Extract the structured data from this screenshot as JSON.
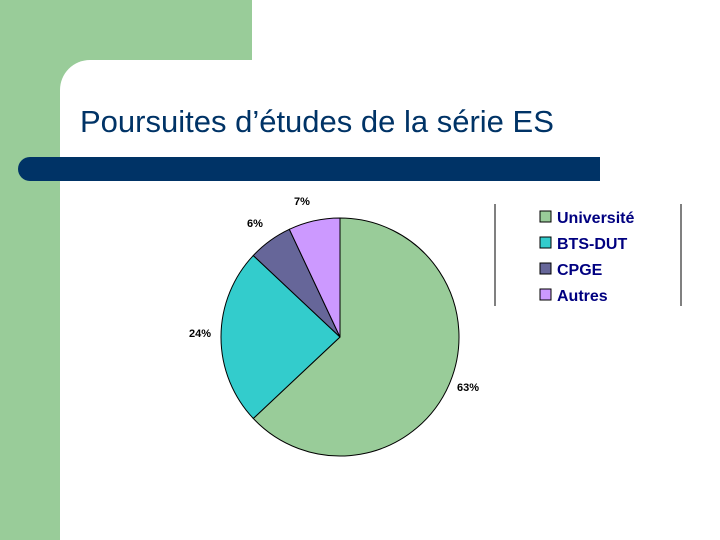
{
  "slide": {
    "title": "Poursuites d’études de la série ES",
    "colors": {
      "side_bar": "#99cc99",
      "title_bar": "#003366",
      "title_text": "#003366",
      "background": "#ffffff"
    }
  },
  "chart_data": {
    "type": "pie",
    "title": "",
    "categories": [
      "Université",
      "BTS-DUT",
      "CPGE",
      "Autres"
    ],
    "values": [
      63,
      24,
      6,
      7
    ],
    "labels": [
      "63%",
      "24%",
      "6%",
      "7%"
    ],
    "colors": [
      "#99cc99",
      "#33cccc",
      "#666699",
      "#cc99ff"
    ],
    "legend": {
      "position": "right",
      "items": [
        "Université",
        "BTS-DUT",
        "CPGE",
        "Autres"
      ]
    }
  }
}
